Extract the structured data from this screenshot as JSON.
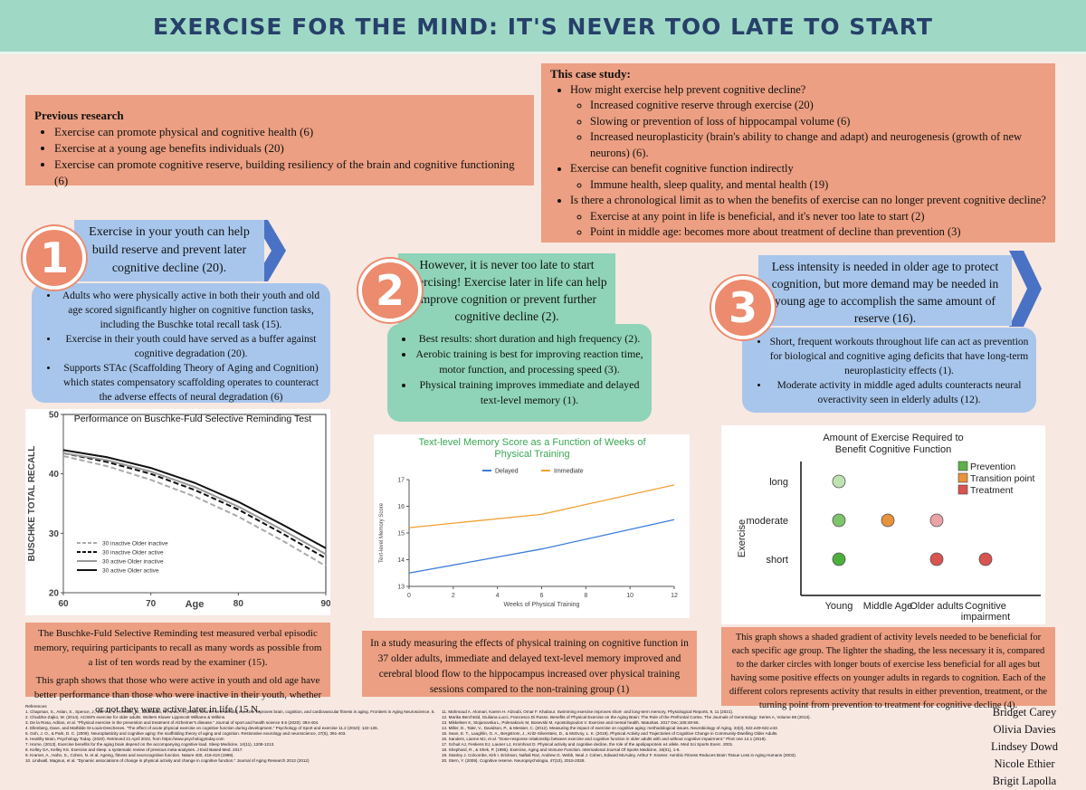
{
  "header": {
    "title": "EXERCISE FOR THE MIND: IT'S NEVER TOO LATE TO START"
  },
  "previous_research": {
    "heading": "Previous research",
    "items": [
      "Exercise can promote physical and cognitive health (6)",
      "Exercise at a young age benefits individuals (20)",
      "Exercise can promote cognitive reserve, building resiliency of the brain and cognitive functioning (6)"
    ]
  },
  "case_study": {
    "heading": "This case study:",
    "items": [
      {
        "text": "How might exercise help prevent cognitive decline?",
        "sub": [
          "Increased cognitive reserve through exercise (20)",
          "Slowing or prevention of loss of hippocampal volume (6)",
          "Increased neuroplasticity (brain's ability to change and adapt) and neurogenesis (growth of new neurons) (6)."
        ]
      },
      {
        "text": "Exercise can benefit cognitive function indirectly",
        "sub": [
          "Immune health, sleep quality, and mental health (19)"
        ]
      },
      {
        "text": "Is there a chronological limit as to when the benefits of exercise can no longer prevent cognitive decline?",
        "sub": [
          "Exercise at any point in life is beneficial, and it's never too late to start (2)",
          "Point in middle age: becomes more about treatment of decline than prevention (3)"
        ]
      }
    ]
  },
  "sections": [
    {
      "number": "1",
      "lead": "Exercise in your youth can help build reserve and prevent later cognitive decline (20).",
      "bullets": [
        "Adults who were physically active in both their youth and old age scored significantly higher on cognitive function tasks, including the Buschke total recall task (15).",
        "Exercise in their youth could have served as a buffer against cognitive degradation (20).",
        "Supports STAc (Scaffolding Theory of Aging and Cognition) which states compensatory scaffolding operates to counteract the adverse effects of neural degradation (6)"
      ]
    },
    {
      "number": "2",
      "lead": "However, it is never too late to start exercising! Exercise later in life can help improve cognition or prevent further cognitive decline (2).",
      "bullets": [
        "Best results: short duration and high frequency (2).",
        "Aerobic training is best for improving reaction time, motor function, and processing speed (3).",
        "Physical training improves immediate and delayed text-level memory (1)."
      ]
    },
    {
      "number": "3",
      "lead": "Less intensity is needed in older age to protect cognition, but more demand may be needed in young age to accomplish the same amount of reserve (16).",
      "bullets": [
        "Short, frequent workouts throughout life can act as prevention for biological and cognitive aging deficits that have long-term neuroplasticity effects (1).",
        "Moderate activity in middle aged adults counteracts neural overactivity seen in elderly adults (12)."
      ]
    }
  ],
  "chart_data": [
    {
      "type": "line",
      "title": "Performance on Buschke-Fuld Selective Reminding Test",
      "x_label": "Age",
      "y_label": "BUSCHKE TOTAL RECALL",
      "x": [
        60,
        65,
        70,
        75,
        80,
        85,
        90
      ],
      "xlim": [
        60,
        90
      ],
      "xticks": [
        60,
        70,
        80,
        90
      ],
      "ylim": [
        20,
        50
      ],
      "yticks": [
        20,
        30,
        40,
        50
      ],
      "legend": "lower-left",
      "series": [
        {
          "name": "30 inactive Older inactive",
          "color": "#aaaaaa",
          "dashed": true,
          "values": [
            43,
            41.3,
            39,
            36.2,
            32.8,
            28.8,
            24.5
          ]
        },
        {
          "name": "30 inactive Older active",
          "color": "#111111",
          "dashed": true,
          "values": [
            43.5,
            42,
            40,
            37.3,
            34,
            30,
            25.8
          ]
        },
        {
          "name": "30 active Older inactive",
          "color": "#999999",
          "dashed": false,
          "values": [
            43.5,
            42.3,
            40.4,
            37.8,
            34.5,
            30.6,
            26.5
          ]
        },
        {
          "name": "30 active Older active",
          "color": "#111111",
          "dashed": false,
          "values": [
            44,
            42.8,
            41,
            38.5,
            35.3,
            31.5,
            27.5
          ]
        }
      ]
    },
    {
      "type": "line",
      "title": "Text-level Memory Score as a Function of Weeks of Physical Training",
      "x_label": "Weeks of Physical Training",
      "y_label": "Text-level Memory Score",
      "x": [
        0,
        6,
        12
      ],
      "xlim": [
        0,
        12
      ],
      "xticks": [
        0,
        2,
        4,
        6,
        8,
        10,
        12
      ],
      "ylim": [
        13,
        17
      ],
      "yticks": [
        13,
        14,
        15,
        16,
        17
      ],
      "legend": "top",
      "series": [
        {
          "name": "Delayed",
          "color": "#3b7dd8",
          "dashed": false,
          "values": [
            13.5,
            14.4,
            15.5
          ]
        },
        {
          "name": "Immediate",
          "color": "#f0a030",
          "dashed": false,
          "values": [
            15.2,
            15.7,
            16.8
          ]
        }
      ]
    },
    {
      "type": "scatter",
      "title": "Amount of Exercise Required to Benefit Cognitive Function",
      "y_label": "Exercise",
      "categories": [
        "Young",
        "Middle Age",
        "Older adults",
        "Cognitive impairment"
      ],
      "levels": [
        "short",
        "moderate",
        "long"
      ],
      "legend_items": [
        {
          "name": "Prevention",
          "color": "#5cb04a"
        },
        {
          "name": "Transition point",
          "color": "#e8923a"
        },
        {
          "name": "Treatment",
          "color": "#d9534f"
        }
      ],
      "points": [
        {
          "x": "Young",
          "y": "long",
          "color": "#bfe3b0"
        },
        {
          "x": "Young",
          "y": "moderate",
          "color": "#7dc56a"
        },
        {
          "x": "Middle Age",
          "y": "moderate",
          "color": "#e8923a"
        },
        {
          "x": "Older adults",
          "y": "moderate",
          "color": "#eba3a8"
        },
        {
          "x": "Young",
          "y": "short",
          "color": "#4caf3c"
        },
        {
          "x": "Older adults",
          "y": "short",
          "color": "#d9534f"
        },
        {
          "x": "Cognitive impairment",
          "y": "short",
          "color": "#d9534f"
        }
      ]
    }
  ],
  "captions": [
    [
      "The Buschke-Fuld Selective Reminding test measured verbal episodic memory, requiring participants to recall as many words as possible from a list of ten words read by the examiner (15).",
      "This graph shows that those who were active in youth and old age have better performance than those who were inactive in their youth, whether or not they were active later in life (15 N."
    ],
    [
      "In a study measuring the effects of physical training on cognitive function in 37 older adults, immediate and delayed text-level memory improved and cerebral blood flow to the hippocampus increased over physical training sessions compared to the non-training group (1)"
    ],
    [
      "This graph shows a shaded gradient of activity levels needed to be beneficial for each specific age group. The lighter the shading, the less necessary it is, compared to the darker circles with longer bouts of exercise less beneficial for all ages but having some positive effects on younger adults in regards to cognition. Each of the different colors represents activity that results in either prevention, treatment, or the turning point from prevention to treatment for cognitive decline (4)."
    ]
  ],
  "references": {
    "heading": "References",
    "left": [
      "1. Chapman, S., Aslan, S., Spence, J., DeFina, L., Keebler, M., Didehbani, N., & Lu, H. (2013). Shorter term aerobic exercise improves brain, cognition, and cardiovascular fitness in aging. Frontiers in Aging Neuroscience, 5.",
      "2. Chodzko-Zajko, W. (2014). ACSM's exercise for older adults. Wolters Kluwer Lippincott Williams & Wilkins.",
      "3. De la Rosa, Adrian, et al. \"Physical exercise in the prevention and treatment of Alzheimer's disease.\" Journal of sport and health science 9.5 (2020): 394-404.",
      "4. Ellenberg, Dave, and Mathilde St-Louis-Deschenes. \"The effect of acute physical exercise on cognitive function during development.\" Psychology of Sport and exercise 11.2 (2010): 122-126.",
      "5. Goh, J. O., & Park, D. C. (2009). Neuroplasticity and cognitive aging: the scaffolding theory of aging and cognition. Restorative neurology and neuroscience, 27(5), 391-403.",
      "6. Healthy Brain, Psychology Today. (2020). Retrieved 21 April 2022, from https://www.psychologytoday.com",
      "7. Horne, (2013). Exercise benefits for the aging brain depend on the accompanying cognitive load. Sleep Medicine, 14(11), 1208-1213.",
      "8. Kelley GA, Kelley KS. Exercise and sleep: a systematic review of previous meta-analyses. J Evid Based Med. 2017.",
      "9. Kramer, A., Hahn, S., Cohen, N. et al. Ageing, fitness and neurocognitive function. Nature 400, 418-419 (1999).",
      "10. Lindwall, Magnus, et al. \"Dynamic associations of change in physical activity and change in cognitive function.\" Journal of Aging Research 2012 (2012)"
    ],
    "right": [
      "11. Mahmoud A. Alomari, Karem H. Alzoubi, Omar F. Khabour. Swimming exercise improves short- and long-term memory, Physiological Reports, 9, 11 (2021).",
      "12. Marika Berchtold, Giuliana Lucci, Francesco Di Russo. Benefits of Physical Exercise on the Aging Brain: The Role of the Prefrontal Cortex. The Journals of Gerontology: Series A, Volume 68 (2013).",
      "13. Mikkelsen K, Stojanovska L, Polenakovic M, Bosevski M, Apostolopoulos V. Exercise and mental health. Maturitas. 2017 Dec;106:48-56.",
      "14. Miller, D., Taler, V., Davidson, P., & Messier, C. (2012). Measuring the impact of exercise on cognitive aging: methodological issues. Neurobiology of Aging, 33(3), 622.e29-622.e43.",
      "15. Sean, E. T., Laughlin, G. A., Bergstrom, J., Kritz-Silverstein, D., & McEvoy, L. K. (2019). Physical Activity and Trajectories of Cognitive Change in Community-Dwelling Older Adults.",
      "16. Sanders, Lianne MJ, et al. \"Dose-response relationship between exercise and cognitive function in older adults with and without cognitive impairment.\" PloS one 14.1 (2019).",
      "17. Schuit AJ, Feskens EJ, Launer LJ, Kromhout D. Physical activity and cognitive decline, the role of the apolipoprotein e4 allele. Med Sci Sports Exerc. 2001.",
      "18. Shephard, R., & Shek, P. (1995). Exercise, Aging and Immune Function. International Journal Of Sports Medicine, 16(01), 1-6.",
      "19. Stanley J. Colcombe, Kirk I. Erickson, Naftali Raz, Andrew G. Webb, Neal J. Cohen, Edward McAuley, Arthur F. Kramer. Aerobic Fitness Reduces Brain Tissue Loss in Aging Humans (2003).",
      "20. Stern, Y. (2009). Cognitive reserve. Neuropsychologia, 47(10), 2015-2028."
    ]
  },
  "authors": [
    "Bridget Carey",
    "Olivia Davies",
    "Lindsey Dowd",
    "Nicole Ethier",
    "Brigit Lapolla"
  ]
}
